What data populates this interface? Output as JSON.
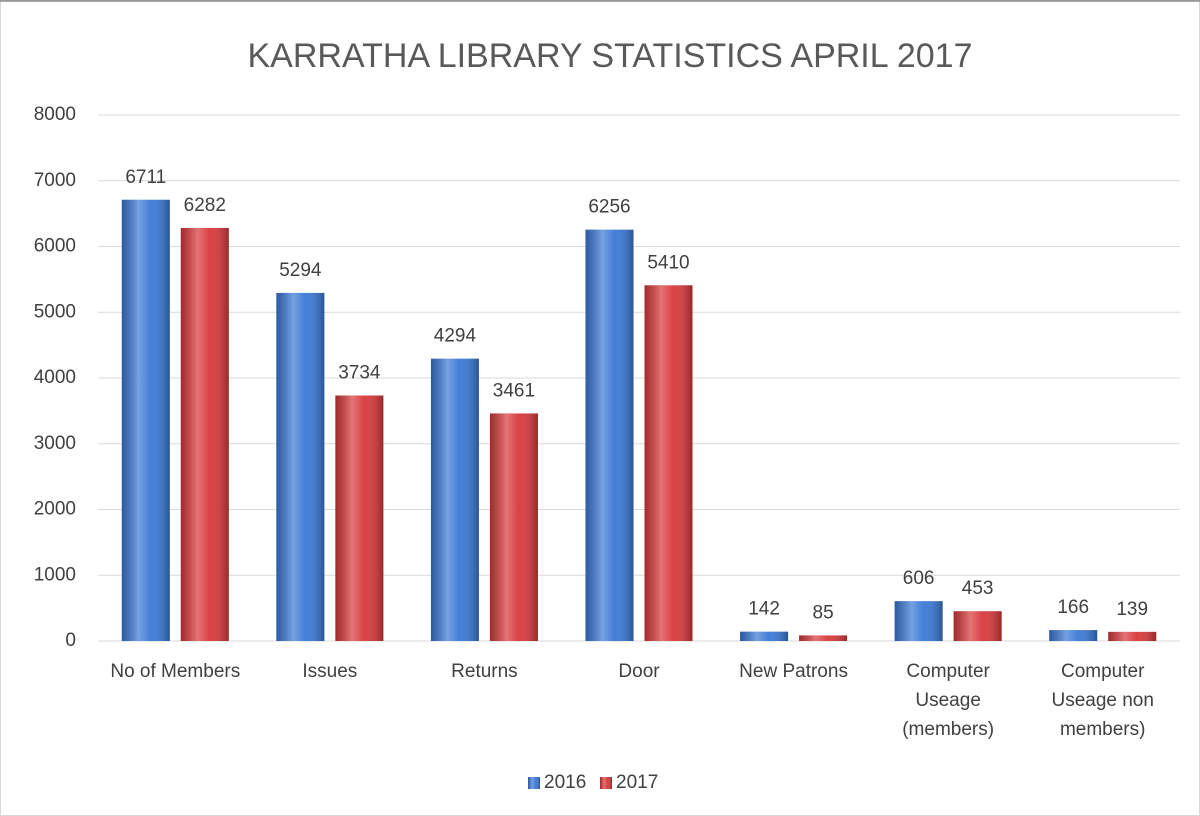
{
  "chart_data": {
    "type": "bar",
    "title": "KARRATHA LIBRARY STATISTICS APRIL 2017",
    "categories": [
      "No of Members",
      "Issues",
      "Returns",
      "Door",
      "New Patrons",
      "Computer Useage (members)",
      "Computer Useage non members)"
    ],
    "series": [
      {
        "name": "2016",
        "color": "#3a78d6",
        "values": [
          6711,
          5294,
          4294,
          6256,
          142,
          606,
          166
        ]
      },
      {
        "name": "2017",
        "color": "#d8383a",
        "values": [
          6282,
          3734,
          3461,
          5410,
          85,
          453,
          139
        ]
      }
    ],
    "ylim": [
      0,
      8000
    ],
    "yticks": [
      0,
      1000,
      2000,
      3000,
      4000,
      5000,
      6000,
      7000,
      8000
    ],
    "grid": true,
    "legend": "bottom"
  }
}
